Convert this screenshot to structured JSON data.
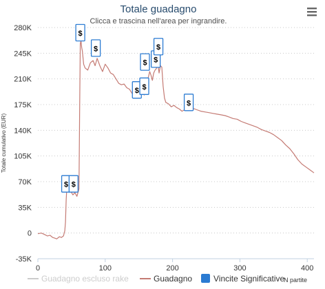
{
  "chart_data": {
    "type": "line",
    "title": "Totale guadagno",
    "subtitle": "Clicca e trascina nell'area per ingrandire.",
    "xlabel": "N partite",
    "ylabel": "Totale cumulativo (EUR)",
    "xlim": [
      0,
      410
    ],
    "ylim": [
      -35000,
      280000
    ],
    "xticks": [
      "0",
      "100",
      "200",
      "300",
      "400"
    ],
    "yticks": [
      "-35K",
      "0",
      "35K",
      "70K",
      "105K",
      "140K",
      "175K",
      "210K",
      "245K",
      "280K"
    ],
    "grid": true,
    "series": [
      {
        "name": "Guadagno escluso rake",
        "color": "#cccccc",
        "x": [],
        "y": []
      },
      {
        "name": "Guadagno",
        "color": "#c47a73",
        "x": [
          0,
          5,
          10,
          14,
          18,
          22,
          25,
          28,
          32,
          35,
          38,
          40,
          41,
          42,
          43,
          44,
          48,
          52,
          55,
          58,
          61,
          62,
          63,
          64,
          65,
          66,
          68,
          70,
          74,
          78,
          82,
          85,
          88,
          92,
          96,
          100,
          104,
          108,
          112,
          116,
          120,
          124,
          128,
          132,
          136,
          140,
          142,
          144,
          146,
          148,
          150,
          152,
          154,
          156,
          158,
          160,
          162,
          164,
          166,
          168,
          170,
          172,
          174,
          176,
          178,
          180,
          182,
          184,
          186,
          188,
          190,
          194,
          198,
          202,
          206,
          210,
          214,
          218,
          222,
          224,
          226,
          230,
          236,
          242,
          248,
          254,
          260,
          266,
          272,
          278,
          284,
          290,
          296,
          302,
          308,
          314,
          320,
          326,
          332,
          338,
          344,
          350,
          356,
          362,
          368,
          374,
          380,
          386,
          392,
          398,
          404,
          410
        ],
        "y": [
          -1000,
          0,
          -2000,
          -4000,
          -3000,
          -6000,
          -7000,
          -8000,
          -5000,
          -6000,
          -4000,
          3000,
          15000,
          45000,
          62000,
          56000,
          58000,
          52000,
          55000,
          50000,
          60000,
          160000,
          258000,
          262000,
          253000,
          248000,
          230000,
          225000,
          222000,
          232000,
          235000,
          228000,
          238000,
          228000,
          220000,
          230000,
          225000,
          218000,
          216000,
          210000,
          204000,
          202000,
          203000,
          198000,
          196000,
          190000,
          188000,
          185000,
          200000,
          194000,
          188000,
          196000,
          200000,
          190000,
          188000,
          198000,
          202000,
          212000,
          220000,
          215000,
          208000,
          218000,
          222000,
          224000,
          232000,
          218000,
          228000,
          226000,
          200000,
          184000,
          178000,
          176000,
          172000,
          174000,
          171000,
          169000,
          166000,
          168000,
          170000,
          176000,
          172000,
          170000,
          168000,
          166000,
          165000,
          164000,
          163000,
          162000,
          161000,
          160000,
          158000,
          156000,
          155000,
          152000,
          150000,
          148000,
          146000,
          144000,
          141000,
          139000,
          137000,
          134000,
          130000,
          126000,
          120000,
          115000,
          108000,
          100000,
          94000,
          90000,
          86000,
          82000
        ]
      }
    ],
    "annotations": {
      "name": "Vincite Significative",
      "color": "#2b7bd2",
      "label": "$",
      "points": [
        {
          "x": 42,
          "y": 67000
        },
        {
          "x": 53,
          "y": 67000
        },
        {
          "x": 63,
          "y": 273000
        },
        {
          "x": 86,
          "y": 252000
        },
        {
          "x": 147,
          "y": 195000
        },
        {
          "x": 158,
          "y": 200000
        },
        {
          "x": 159,
          "y": 233000
        },
        {
          "x": 175,
          "y": 237000
        },
        {
          "x": 179,
          "y": 254000
        },
        {
          "x": 224,
          "y": 178000
        }
      ]
    }
  }
}
